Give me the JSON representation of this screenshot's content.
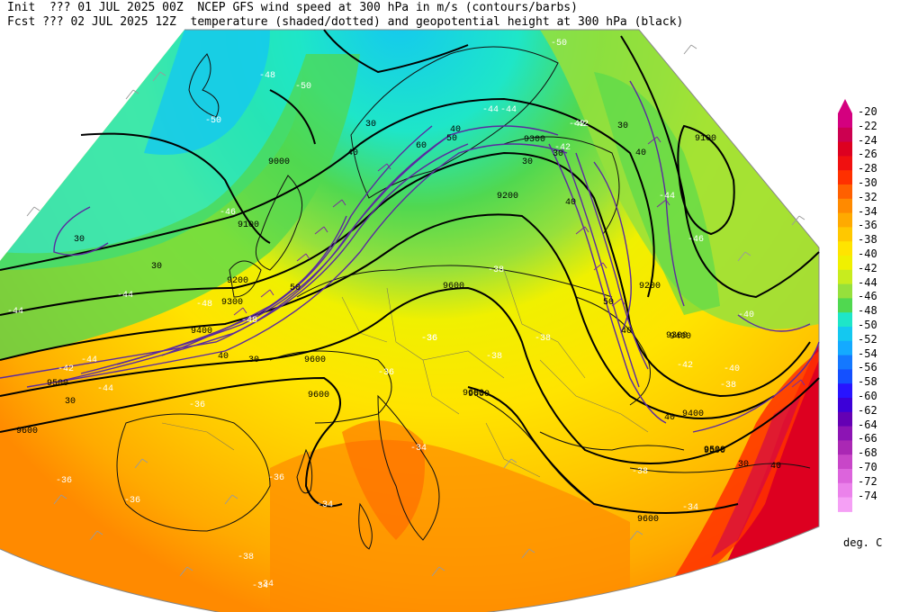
{
  "header": {
    "line1": "Init  ??? 01 JUL 2025 00Z  NCEP GFS wind speed at 300 hPa in m/s (contours/barbs)",
    "line2": "Fcst ??? 02 JUL 2025 12Z  temperature (shaded/dotted) and geopotential height at 300 hPa (black)"
  },
  "legend": {
    "unit": "deg. C",
    "levels": [
      {
        "label": "-20",
        "color": "#d4007f"
      },
      {
        "label": "-22",
        "color": "#cc0050"
      },
      {
        "label": "-24",
        "color": "#dd0020"
      },
      {
        "label": "-26",
        "color": "#f01010"
      },
      {
        "label": "-28",
        "color": "#ff3000"
      },
      {
        "label": "-30",
        "color": "#ff6000"
      },
      {
        "label": "-32",
        "color": "#ff8a00"
      },
      {
        "label": "-34",
        "color": "#ffaa00"
      },
      {
        "label": "-36",
        "color": "#ffc800"
      },
      {
        "label": "-38",
        "color": "#ffe400"
      },
      {
        "label": "-40",
        "color": "#f0f000"
      },
      {
        "label": "-42",
        "color": "#c8ec1e"
      },
      {
        "label": "-44",
        "color": "#96e03c"
      },
      {
        "label": "-46",
        "color": "#50d850"
      },
      {
        "label": "-48",
        "color": "#1ee6c8"
      },
      {
        "label": "-50",
        "color": "#14c8f0"
      },
      {
        "label": "-52",
        "color": "#14aaff"
      },
      {
        "label": "-54",
        "color": "#1478ff"
      },
      {
        "label": "-56",
        "color": "#1450ff"
      },
      {
        "label": "-58",
        "color": "#2814ff"
      },
      {
        "label": "-60",
        "color": "#3c00d8"
      },
      {
        "label": "-62",
        "color": "#6400b4"
      },
      {
        "label": "-64",
        "color": "#8c14b4"
      },
      {
        "label": "-66",
        "color": "#aa28b4"
      },
      {
        "label": "-68",
        "color": "#c846c8"
      },
      {
        "label": "-70",
        "color": "#dc64dc"
      },
      {
        "label": "-72",
        "color": "#eb82eb"
      },
      {
        "label": "-74",
        "color": "#f5a0f5"
      }
    ]
  },
  "map_labels": {
    "height": [
      "9000",
      "9100",
      "9200",
      "9300",
      "9400",
      "9500",
      "9600",
      "9100",
      "9200",
      "9300",
      "9400",
      "9500",
      "9600",
      "9600",
      "9600",
      "9600",
      "9200",
      "9300",
      "9400",
      "9500",
      "9600",
      "9600"
    ],
    "wind": [
      "30",
      "30",
      "30",
      "40",
      "50",
      "60",
      "40",
      "30",
      "30",
      "40",
      "50",
      "40",
      "30",
      "30",
      "40",
      "50",
      "40",
      "30",
      "40",
      "30",
      "40"
    ],
    "temp": [
      "-48",
      "-50",
      "-50",
      "-46",
      "-44",
      "-44",
      "-42",
      "-44",
      "-44",
      "-48",
      "-50",
      "-44",
      "-36",
      "-36",
      "-36",
      "-34",
      "-36",
      "-38",
      "-34",
      "-34",
      "-36",
      "-38",
      "-38",
      "-42",
      "-40",
      "-38",
      "-38",
      "-40",
      "-42",
      "-36",
      "-34",
      "-34",
      "-36",
      "-38",
      "-44",
      "-42",
      "-42",
      "-46",
      "-44",
      "-48"
    ]
  }
}
